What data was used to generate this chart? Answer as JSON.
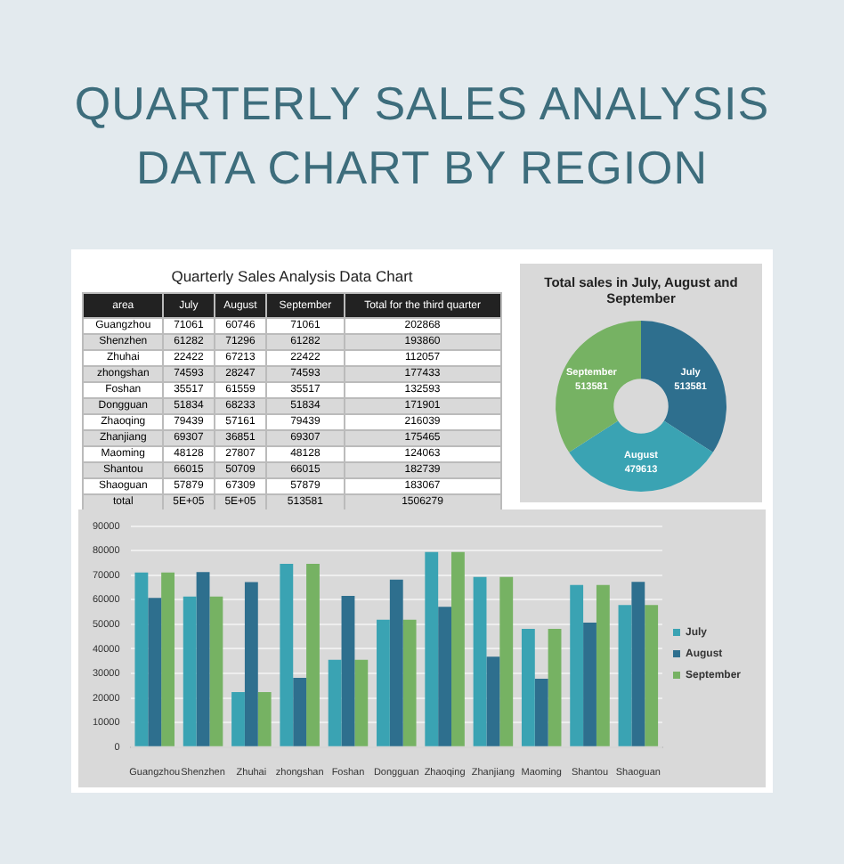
{
  "chart_data": [
    {
      "type": "other",
      "title": "QUARTERLY SALES ANALYSIS DATA CHART BY REGION"
    },
    {
      "type": "other",
      "title": "Quarterly Sales Analysis Data Chart",
      "xlabel": "area",
      "data_labels": true,
      "categories": [
        "Guangzhou",
        "Shenzhen",
        "Zhuhai",
        "zhongshan",
        "Foshan",
        "Dongguan",
        "Zhaoqing",
        "Zhanjiang",
        "Maoming",
        "Shantou",
        "Shaoguan",
        "total"
      ],
      "series": [
        {
          "name": "July",
          "values": [
            71061,
            61282,
            22422,
            74593,
            35517,
            51834,
            79439,
            69307,
            48128,
            66015,
            57879,
            null
          ]
        },
        {
          "name": "August",
          "values": [
            60746,
            71296,
            67213,
            28247,
            61559,
            68233,
            57161,
            36851,
            27807,
            50709,
            67309,
            null
          ]
        },
        {
          "name": "September",
          "values": [
            71061,
            61282,
            22422,
            74593,
            35517,
            51834,
            79439,
            69307,
            48128,
            66015,
            57879,
            513581
          ]
        },
        {
          "name": "Total for the third quarter",
          "values": [
            202868,
            193860,
            112057,
            177433,
            132593,
            171901,
            216039,
            175465,
            124063,
            182739,
            183067,
            1506279
          ]
        }
      ],
      "annotations": [
        "5E+05",
        "5E+05"
      ]
    },
    {
      "type": "donut",
      "title": "Total sales in July, August and September",
      "categories": [
        "July",
        "August",
        "September"
      ],
      "values": [
        513581,
        479613,
        513581
      ],
      "colors": [
        "#2e6f8e",
        "#3aa3b3",
        "#76b263"
      ],
      "data_labels": true,
      "legend": false
    },
    {
      "type": "bar",
      "categories": [
        "Guangzhou",
        "Shenzhen",
        "Zhuhai",
        "zhongshan",
        "Foshan",
        "Dongguan",
        "Zhaoqing",
        "Zhanjiang",
        "Maoming",
        "Shantou",
        "Shaoguan"
      ],
      "series": [
        {
          "name": "July",
          "color": "#3aa3b3",
          "values": [
            71061,
            61282,
            22422,
            74593,
            35517,
            51834,
            79439,
            69307,
            48128,
            66015,
            57879
          ]
        },
        {
          "name": "August",
          "color": "#2e6f8e",
          "values": [
            60746,
            71296,
            67213,
            28247,
            61559,
            68233,
            57161,
            36851,
            27807,
            50709,
            67309
          ]
        },
        {
          "name": "September",
          "color": "#76b263",
          "values": [
            71061,
            61282,
            22422,
            74593,
            35517,
            51834,
            79439,
            69307,
            48128,
            66015,
            57879
          ]
        }
      ],
      "ylim": [
        0,
        90000
      ],
      "yticks": [
        0,
        10000,
        20000,
        30000,
        40000,
        50000,
        60000,
        70000,
        80000,
        90000
      ],
      "grid": "y",
      "legend": "right"
    }
  ]
}
